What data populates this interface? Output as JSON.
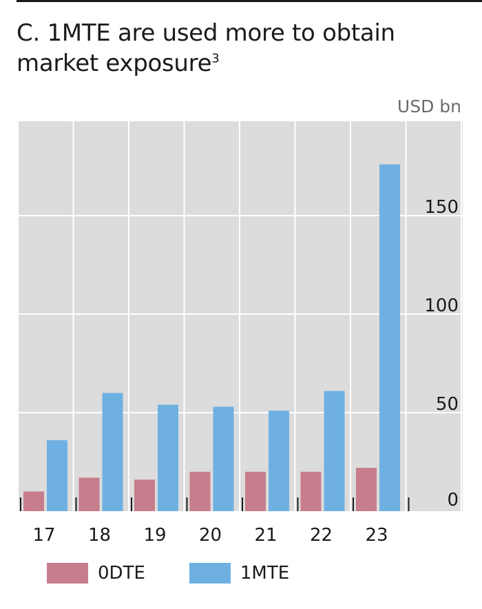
{
  "chart_data": {
    "type": "bar",
    "title": "C. 1MTE are used more to obtain market exposure",
    "title_superscript": "3",
    "unit_label": "USD bn",
    "categories": [
      "17",
      "18",
      "19",
      "20",
      "21",
      "22",
      "23"
    ],
    "series": [
      {
        "name": "0DTE",
        "color": "#c77d8c",
        "values": [
          10,
          17,
          16,
          20,
          20,
          20,
          22
        ]
      },
      {
        "name": "1MTE",
        "color": "#6fb0e2",
        "values": [
          36,
          60,
          54,
          53,
          51,
          61,
          176
        ]
      }
    ],
    "y_ticks": [
      0,
      50,
      100,
      150
    ],
    "ylim": [
      0,
      200
    ],
    "y_axis_side": "right",
    "grid": true,
    "plot_background": "#dcdcdc",
    "legend_position": "bottom"
  }
}
